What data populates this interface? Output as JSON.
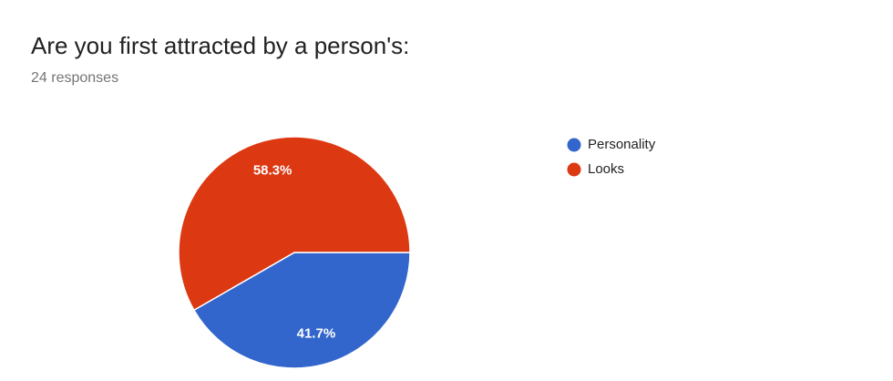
{
  "chart_data": {
    "type": "pie",
    "title": "Are you first attracted by a person's:",
    "subtitle": "24 responses",
    "categories": [
      "Personality",
      "Looks"
    ],
    "values": [
      41.7,
      58.3
    ],
    "value_labels": [
      "41.7%",
      "58.3%"
    ],
    "colors": [
      "#3366cc",
      "#dc3912"
    ],
    "legend": "right"
  }
}
